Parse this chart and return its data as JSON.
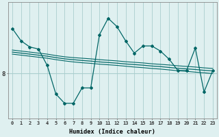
{
  "x": [
    0,
    1,
    2,
    3,
    4,
    5,
    6,
    7,
    8,
    9,
    10,
    11,
    12,
    13,
    14,
    15,
    16,
    17,
    18,
    19,
    20,
    21,
    22,
    23
  ],
  "main_line": [
    10.2,
    9.6,
    9.3,
    9.2,
    8.4,
    7.0,
    6.55,
    6.55,
    7.3,
    7.3,
    9.9,
    10.7,
    10.3,
    9.6,
    9.0,
    9.35,
    9.35,
    9.1,
    8.7,
    8.15,
    8.15,
    9.25,
    7.1,
    8.15
  ],
  "upper_band": [
    9.15,
    9.1,
    9.05,
    9.0,
    8.95,
    8.88,
    8.82,
    8.78,
    8.75,
    8.72,
    8.68,
    8.65,
    8.62,
    8.58,
    8.55,
    8.52,
    8.48,
    8.45,
    8.42,
    8.38,
    8.35,
    8.32,
    8.28,
    8.25
  ],
  "lower_band": [
    8.95,
    8.9,
    8.85,
    8.8,
    8.75,
    8.68,
    8.62,
    8.57,
    8.53,
    8.5,
    8.46,
    8.43,
    8.4,
    8.36,
    8.32,
    8.29,
    8.25,
    8.22,
    8.18,
    8.14,
    8.11,
    8.07,
    8.04,
    8.0
  ],
  "trend_line": [
    9.05,
    9.0,
    8.95,
    8.9,
    8.85,
    8.78,
    8.72,
    8.68,
    8.64,
    8.61,
    8.57,
    8.54,
    8.51,
    8.47,
    8.44,
    8.41,
    8.37,
    8.34,
    8.3,
    8.26,
    8.23,
    8.2,
    8.16,
    8.13
  ],
  "bg_color": "#dff0f0",
  "line_color": "#006666",
  "grid_color": "#aacece",
  "xlabel": "Humidex (Indice chaleur)",
  "ytick_labels": [
    "8"
  ],
  "ytick_values": [
    8.0
  ],
  "ylim": [
    5.8,
    11.5
  ],
  "xlim": [
    -0.5,
    23.5
  ]
}
